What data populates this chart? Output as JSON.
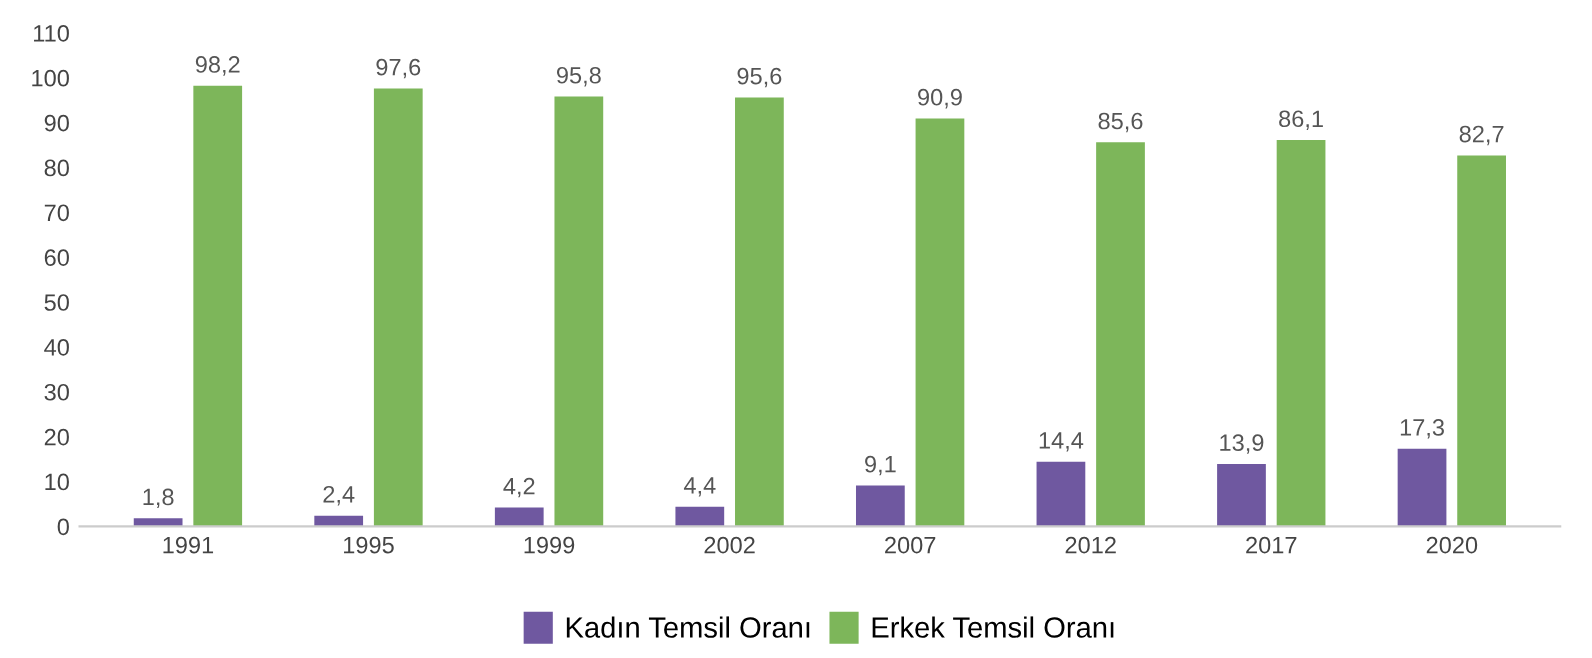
{
  "chart_data": {
    "type": "bar",
    "categories": [
      "1991",
      "1995",
      "1999",
      "2002",
      "2007",
      "2012",
      "2017",
      "2020"
    ],
    "series": [
      {
        "name": "Kadın Temsil Oranı",
        "color": "#6f58a0",
        "values": [
          1.8,
          2.4,
          4.2,
          4.4,
          9.1,
          14.4,
          13.9,
          17.3
        ],
        "value_labels": [
          "1,8",
          "2,4",
          "4,2",
          "4,4",
          "9,1",
          "14,4",
          "13,9",
          "17,3"
        ]
      },
      {
        "name": "Erkek Temsil Oranı",
        "color": "#7db65a",
        "values": [
          98.2,
          97.6,
          95.8,
          95.6,
          90.9,
          85.6,
          86.1,
          82.7
        ],
        "value_labels": [
          "98,2",
          "97,6",
          "95,8",
          "95,6",
          "90,9",
          "85,6",
          "86,1",
          "82,7"
        ]
      }
    ],
    "ylim": [
      0,
      110
    ],
    "yticks": [
      0,
      10,
      20,
      30,
      40,
      50,
      60,
      70,
      80,
      90,
      100,
      110
    ],
    "grid": false,
    "legend": "bottom"
  }
}
